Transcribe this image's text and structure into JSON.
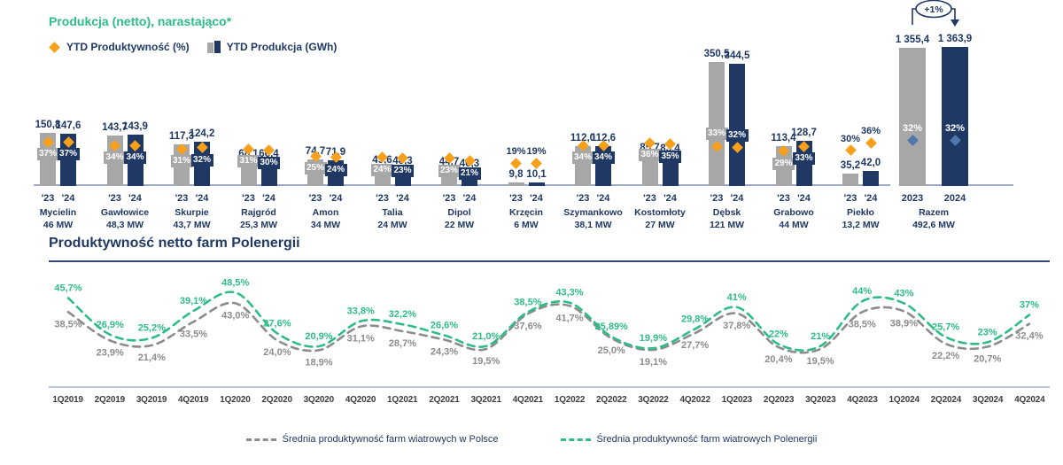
{
  "top_chart": {
    "title": "Produkcja (netto), narastająco*",
    "legend": {
      "productivity": "YTD Produktywność (%)",
      "production": "YTD Produkcja (GWh)"
    },
    "year_labels": [
      "'23",
      "'24"
    ],
    "colors": {
      "bar_2023": "#A7A7A7",
      "bar_2024": "#1F3864",
      "diamond": "#F9A01B",
      "total_diamond": "#4E79AE",
      "text": "#1F3864",
      "axis": "#9FAAC4"
    }
  },
  "bottom_chart": {
    "title": "Produktywność netto farm Polenergii",
    "legend": [
      {
        "label": "Średnia produktywność farm wiatrowych w Polsce",
        "color": "#8C8C8C"
      },
      {
        "label": "Średnia produktywność farm wiatrowych Polenergii",
        "color": "#2EBD85"
      }
    ]
  },
  "chart_data": [
    {
      "type": "bar",
      "title": "Produkcja (netto), narastająco*",
      "series_labels": [
        "YTD Produkcja (GWh) 2023",
        "YTD Produkcja (GWh) 2024",
        "YTD Produktywność (%) 2023",
        "YTD Produktywność (%) 2024"
      ],
      "farms": [
        {
          "name": "Mycielin",
          "capacity": "46 MW",
          "gwh": [
            150.8,
            147.6
          ],
          "gwh_labels": [
            "150,8",
            "147,6"
          ],
          "pct": [
            37,
            37
          ],
          "pct_labels": [
            "37%",
            "37%"
          ]
        },
        {
          "name": "Gawłowice",
          "capacity": "48,3 MW",
          "gwh": [
            143.7,
            143.9
          ],
          "gwh_labels": [
            "143,7",
            "143,9"
          ],
          "pct": [
            34,
            34
          ],
          "pct_labels": [
            "34%",
            "34%"
          ]
        },
        {
          "name": "Skurpie",
          "capacity": "43,7 MW",
          "gwh": [
            117.3,
            124.2
          ],
          "gwh_labels": [
            "117,3",
            "124,2"
          ],
          "pct": [
            31,
            32
          ],
          "pct_labels": [
            "31%",
            "32%"
          ]
        },
        {
          "name": "Rajgród",
          "capacity": "25,3 MW",
          "gwh": [
            68.1,
            66.4
          ],
          "gwh_labels": [
            "68,1",
            "66,4"
          ],
          "pct": [
            31,
            30
          ],
          "pct_labels": [
            "31%",
            "30%"
          ]
        },
        {
          "name": "Amon",
          "capacity": "34 MW",
          "gwh": [
            74.7,
            71.9
          ],
          "gwh_labels": [
            "74,7",
            "71,9"
          ],
          "pct": [
            25,
            24
          ],
          "pct_labels": [
            "25%",
            "24%"
          ]
        },
        {
          "name": "Talia",
          "capacity": "24 MW",
          "gwh": [
            49.6,
            48.3
          ],
          "gwh_labels": [
            "49,6",
            "48,3"
          ],
          "pct": [
            24,
            23
          ],
          "pct_labels": [
            "24%",
            "23%"
          ]
        },
        {
          "name": "Dipol",
          "capacity": "22 MW",
          "gwh": [
            44.7,
            40.3
          ],
          "gwh_labels": [
            "44,7",
            "40,3"
          ],
          "pct": [
            23,
            21
          ],
          "pct_labels": [
            "23%",
            "21%"
          ]
        },
        {
          "name": "Krzęcin",
          "capacity": "6 MW",
          "gwh": [
            9.8,
            10.1
          ],
          "gwh_labels": [
            "9,8",
            "10,1"
          ],
          "pct": [
            19,
            19
          ],
          "pct_labels": [
            "19%",
            "19%"
          ]
        },
        {
          "name": "Szymankowo",
          "capacity": "38,1 MW",
          "gwh": [
            112.0,
            112.6
          ],
          "gwh_labels": [
            "112,0",
            "112,6"
          ],
          "pct": [
            34,
            34
          ],
          "pct_labels": [
            "34%",
            "34%"
          ]
        },
        {
          "name": "Kostomłoty",
          "capacity": "27 MW",
          "gwh": [
            85.7,
            83.4
          ],
          "gwh_labels": [
            "85,7",
            "83,4"
          ],
          "pct": [
            36,
            35
          ],
          "pct_labels": [
            "36%",
            "35%"
          ]
        },
        {
          "name": "Dębsk",
          "capacity": "121 MW",
          "gwh": [
            350.5,
            344.5
          ],
          "gwh_labels": [
            "350,5",
            "344,5"
          ],
          "pct": [
            33,
            32
          ],
          "pct_labels": [
            "33%",
            "32%"
          ]
        },
        {
          "name": "Grabowo",
          "capacity": "44 MW",
          "gwh": [
            113.4,
            128.7
          ],
          "gwh_labels": [
            "113,4",
            "128,7"
          ],
          "pct": [
            29,
            33
          ],
          "pct_labels": [
            "29%",
            "33%"
          ]
        },
        {
          "name": "Piekło",
          "capacity": "13,2 MW",
          "gwh": [
            35.2,
            42.0
          ],
          "gwh_labels": [
            "35,2",
            "42,0"
          ],
          "pct": [
            30,
            36
          ],
          "pct_labels": [
            "30%",
            "36%"
          ]
        }
      ],
      "total": {
        "name": "Razem",
        "capacity": "492,6 MW",
        "year_labels": [
          "2023",
          "2024"
        ],
        "annotation": "+1%",
        "gwh": [
          1355.4,
          1363.9
        ],
        "gwh_labels": [
          "1 355,4",
          "1 363,9"
        ],
        "pct": [
          32,
          32
        ],
        "pct_labels": [
          "32%",
          "32%"
        ]
      }
    },
    {
      "type": "line",
      "title": "Produktywność netto farm Polenergii",
      "x": [
        "1Q2019",
        "2Q2019",
        "3Q2019",
        "4Q2019",
        "1Q2020",
        "2Q2020",
        "3Q2020",
        "4Q2020",
        "1Q2021",
        "2Q2021",
        "3Q2021",
        "4Q2021",
        "1Q2022",
        "2Q2022",
        "3Q2022",
        "4Q2022",
        "1Q2023",
        "2Q2023",
        "3Q2023",
        "4Q2023",
        "1Q2024",
        "2Q2024",
        "3Q2024",
        "4Q2024"
      ],
      "series": [
        {
          "name": "Średnia produktywność farm wiatrowych w Polsce",
          "color": "#8C8C8C",
          "values": [
            38.5,
            23.9,
            21.4,
            33.5,
            43.0,
            24.0,
            18.9,
            31.1,
            28.7,
            24.3,
            19.5,
            37.6,
            41.7,
            25.0,
            19.1,
            27.7,
            37.8,
            20.4,
            19.5,
            38.5,
            38.9,
            22.2,
            20.7,
            32.4
          ],
          "labels": [
            "38,5%",
            "23,9%",
            "21,4%",
            "33,5%",
            "43,0%",
            "24,0%",
            "18,9%",
            "31,1%",
            "28,7%",
            "24,3%",
            "19,5%",
            "37,6%",
            "41,7%",
            "25,0%",
            "19,1%",
            "27,7%",
            "37,8%",
            "20,4%",
            "19,5%",
            "38,5%",
            "38,9%",
            "22,2%",
            "20,7%",
            "32,4%"
          ]
        },
        {
          "name": "Średnia produktywność farm wiatrowych Polenergii",
          "color": "#2EBD85",
          "values": [
            45.7,
            26.9,
            25.2,
            39.1,
            48.5,
            27.6,
            20.9,
            33.8,
            32.2,
            26.6,
            21.0,
            38.5,
            43.3,
            25.89,
            19.9,
            29.8,
            41.0,
            22.0,
            21.0,
            44.0,
            43.0,
            25.7,
            23.0,
            37.0
          ],
          "labels": [
            "45,7%",
            "26,9%",
            "25,2%",
            "39,1%",
            "48,5%",
            "27,6%",
            "20,9%",
            "33,8%",
            "32,2%",
            "26,6%",
            "21,0%",
            "38,5%",
            "43,3%",
            "25,89%",
            "19,9%",
            "29,8%",
            "41%",
            "22%",
            "21%",
            "44%",
            "43%",
            "25,7%",
            "23%",
            "37%"
          ]
        }
      ]
    }
  ]
}
